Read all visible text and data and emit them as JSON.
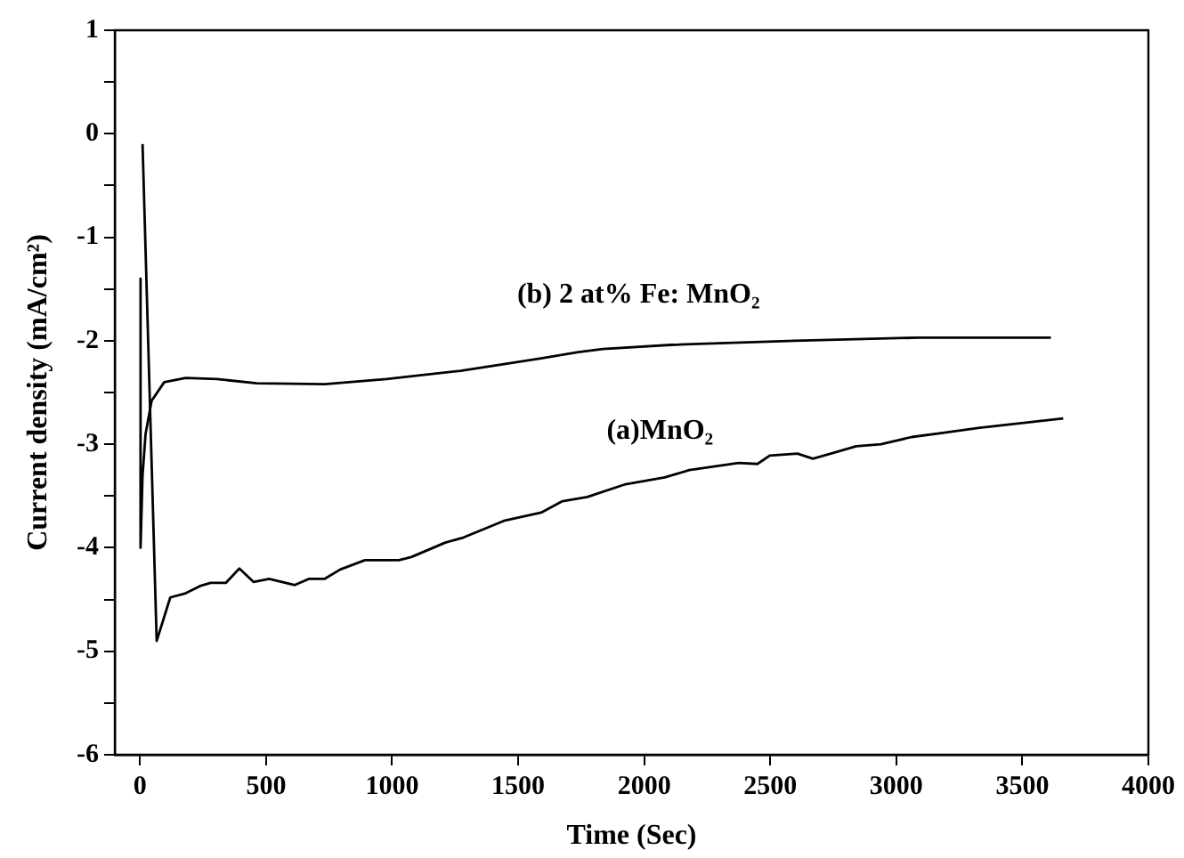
{
  "chart_data": {
    "type": "line",
    "xlabel": "Time (Sec)",
    "ylabel": "Current density (mA/cm²)",
    "xlim": [
      -100,
      4000
    ],
    "xticks": [
      0,
      500,
      1000,
      1500,
      2000,
      2500,
      3000,
      3500,
      4000
    ],
    "ylim": [
      -6,
      1
    ],
    "yticks": [
      -6,
      {
        "value": -5.5,
        "label": null
      },
      -5,
      {
        "value": -4.5,
        "label": null
      },
      -4,
      {
        "value": -3.5,
        "label": null
      },
      -3,
      {
        "value": -2.5,
        "label": null
      },
      -2,
      {
        "value": -1.5,
        "label": null
      },
      -1,
      {
        "value": -0.5,
        "label": null
      },
      0,
      {
        "value": 0.5,
        "label": null
      },
      1
    ],
    "grid": false,
    "legend": false,
    "marker": "none",
    "line_style": "solid",
    "series": [
      {
        "name": "(a)MnO₂",
        "color": "#000000",
        "x": [
          10,
          66,
          120,
          181,
          238,
          280,
          340,
          394,
          450,
          512,
          614,
          671,
          733,
          794,
          892,
          1027,
          1076,
          1211,
          1284,
          1443,
          1591,
          1676,
          1774,
          1921,
          2081,
          2179,
          2375,
          2449,
          2498,
          2608,
          2669,
          2841,
          2939,
          3061,
          3184,
          3331,
          3662
        ],
        "values": [
          -0.1,
          -4.9,
          -4.48,
          -4.44,
          -4.37,
          -4.34,
          -4.34,
          -4.2,
          -4.33,
          -4.3,
          -4.36,
          -4.3,
          -4.3,
          -4.21,
          -4.12,
          -4.12,
          -4.09,
          -3.95,
          -3.9,
          -3.74,
          -3.66,
          -3.55,
          -3.51,
          -3.39,
          -3.32,
          -3.25,
          -3.18,
          -3.19,
          -3.11,
          -3.09,
          -3.14,
          -3.02,
          -3,
          -2.93,
          -2.89,
          -2.84,
          -2.75
        ]
      },
      {
        "name": "(b) 2 at% Fe: MnO₂",
        "color": "#000000",
        "x": [
          2,
          2,
          10,
          22,
          46,
          96,
          181,
          304,
          463,
          733,
          978,
          1272,
          1591,
          1738,
          1836,
          2105,
          2596,
          3086,
          3613
        ],
        "values": [
          -1.4,
          -4,
          -3.3,
          -2.9,
          -2.58,
          -2.4,
          -2.36,
          -2.37,
          -2.41,
          -2.42,
          -2.37,
          -2.29,
          -2.17,
          -2.11,
          -2.08,
          -2.04,
          -2,
          -1.97,
          -1.97
        ]
      }
    ]
  }
}
